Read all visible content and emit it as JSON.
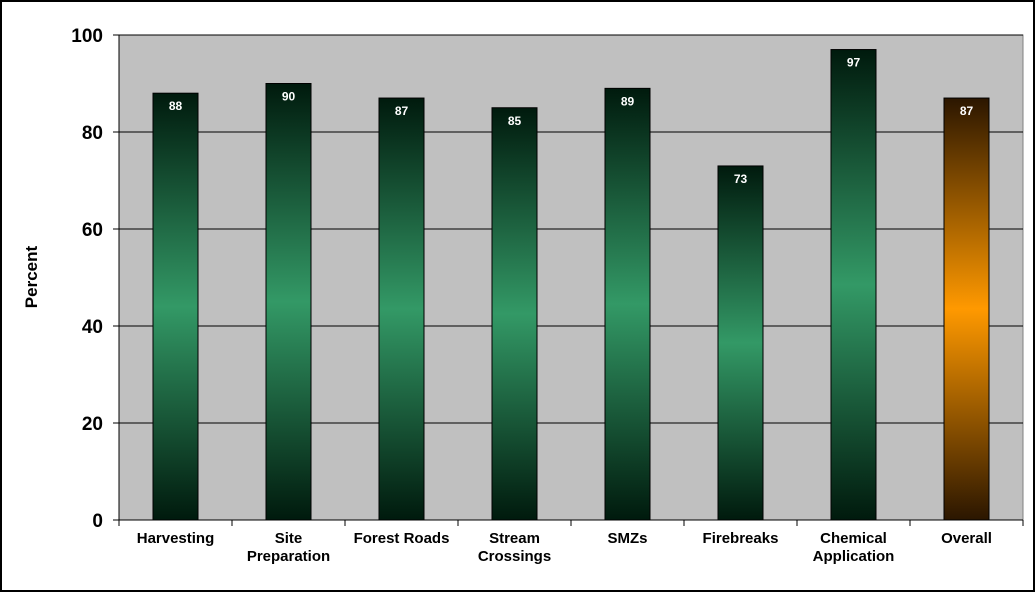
{
  "chart_data": {
    "type": "bar",
    "title": "",
    "xlabel": "",
    "ylabel": "Percent",
    "ylim": [
      0,
      100
    ],
    "yticks": [
      0,
      20,
      40,
      60,
      80,
      100
    ],
    "grid": true,
    "legend": "none",
    "categories": [
      [
        "Harvesting"
      ],
      [
        "Site",
        "Preparation"
      ],
      [
        "Forest Roads"
      ],
      [
        "Stream",
        "Crossings"
      ],
      [
        "SMZs"
      ],
      [
        "Firebreaks"
      ],
      [
        "Chemical",
        "Application"
      ],
      [
        "Overall"
      ]
    ],
    "values": [
      88,
      90,
      87,
      85,
      89,
      73,
      97,
      87
    ],
    "data_labels": [
      "88",
      "90",
      "87",
      "85",
      "89",
      "73",
      "97",
      "87"
    ],
    "colors": {
      "plot_background": "#c0c0c0",
      "bar_green_mid": "#339966",
      "bar_green_dark": "#001a0d",
      "bar_orange_mid": "#ff9900",
      "bar_orange_dark": "#2b1600"
    }
  }
}
